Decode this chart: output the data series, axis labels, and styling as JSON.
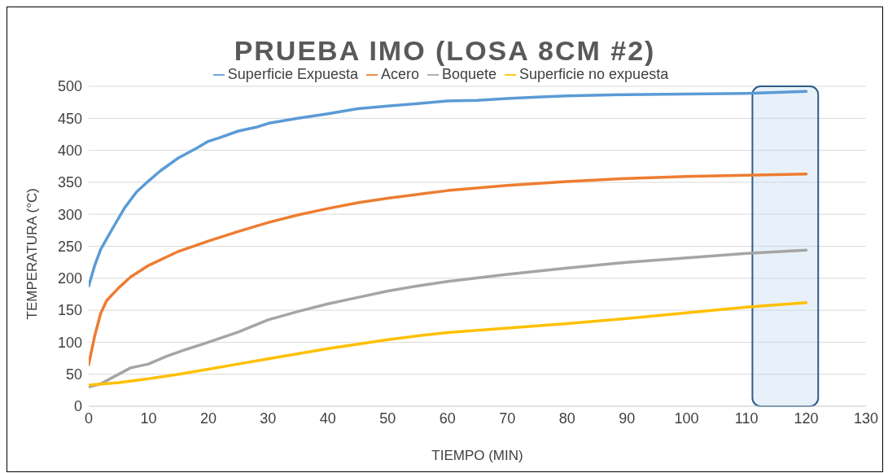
{
  "chart_data": {
    "type": "line",
    "title": "PRUEBA IMO (LOSA 8CM #2)",
    "xlabel": "TIEMPO (MIN)",
    "ylabel": "TEMPERATURA (°C)",
    "xlim": [
      0,
      130
    ],
    "xticks": [
      0,
      10,
      20,
      30,
      40,
      50,
      60,
      70,
      80,
      90,
      100,
      110,
      120,
      130
    ],
    "ylim": [
      0,
      500
    ],
    "yticks": [
      0,
      50,
      100,
      150,
      200,
      250,
      300,
      350,
      400,
      450,
      500
    ],
    "grid": "y",
    "legend": "top",
    "bands": [
      {
        "axis": "x",
        "from": 111,
        "to": 122,
        "color": "#bdd7ee"
      }
    ],
    "marker": "none",
    "line_style": "solid",
    "series": [
      {
        "name": "Superficie Expuesta",
        "color": "#5b9bd5",
        "x": [
          0,
          1,
          2,
          4,
          6,
          8,
          10,
          12,
          15,
          18,
          20,
          22,
          25,
          28,
          30,
          35,
          40,
          45,
          50,
          55,
          60,
          65,
          70,
          75,
          80,
          90,
          100,
          110,
          120
        ],
        "values": [
          188,
          220,
          245,
          278,
          310,
          335,
          352,
          368,
          388,
          403,
          414,
          420,
          430,
          436,
          442,
          450,
          457,
          465,
          469,
          473,
          477,
          478,
          481,
          483,
          485,
          487,
          488,
          489,
          492
        ]
      },
      {
        "name": "Acero",
        "color": "#ed7d31",
        "x": [
          0,
          1,
          2,
          3,
          5,
          7,
          10,
          15,
          20,
          25,
          30,
          35,
          40,
          45,
          50,
          55,
          60,
          70,
          80,
          90,
          100,
          110,
          120
        ],
        "values": [
          65,
          110,
          145,
          165,
          185,
          202,
          220,
          242,
          258,
          273,
          287,
          299,
          309,
          318,
          325,
          331,
          337,
          345,
          351,
          356,
          359,
          361,
          363
        ]
      },
      {
        "name": "Boquete",
        "color": "#a5a5a5",
        "x": [
          0,
          2,
          4,
          7,
          10,
          13,
          16,
          20,
          25,
          30,
          35,
          40,
          45,
          50,
          55,
          60,
          70,
          80,
          90,
          100,
          110,
          120
        ],
        "values": [
          30,
          35,
          45,
          60,
          66,
          78,
          88,
          100,
          116,
          135,
          148,
          160,
          170,
          180,
          188,
          195,
          206,
          216,
          225,
          232,
          239,
          244
        ]
      },
      {
        "name": "Superficie no expuesta",
        "color": "#ffc000",
        "x": [
          0,
          5,
          10,
          15,
          20,
          25,
          30,
          35,
          40,
          45,
          50,
          55,
          60,
          70,
          80,
          90,
          100,
          110,
          120
        ],
        "values": [
          33,
          37,
          43,
          50,
          58,
          66,
          74,
          82,
          90,
          97,
          104,
          110,
          115,
          122,
          129,
          137,
          146,
          155,
          162
        ]
      }
    ]
  }
}
